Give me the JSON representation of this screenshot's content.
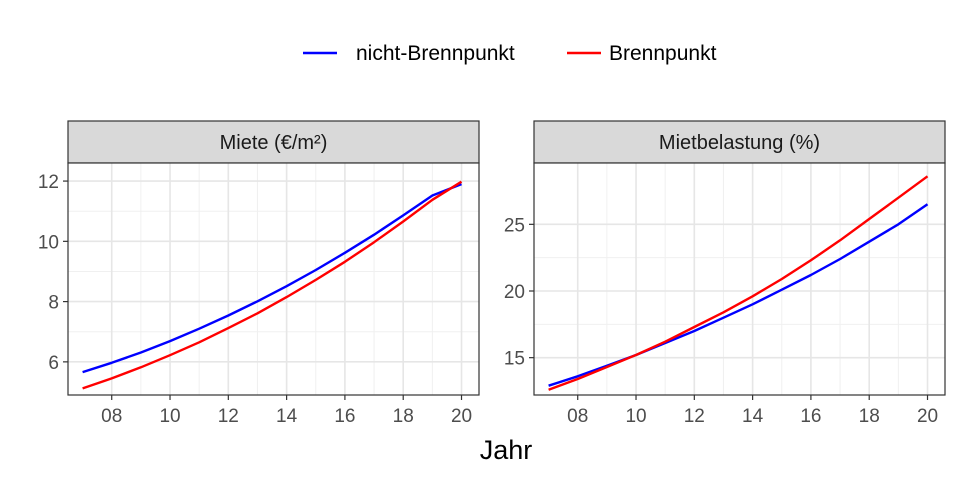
{
  "legend": {
    "items": [
      {
        "label": "nicht-Brennpunkt",
        "color": "#0000FF"
      },
      {
        "label": "Brennpunkt",
        "color": "#FF0000"
      }
    ]
  },
  "xlabel": "Jahr",
  "chart_data": [
    {
      "type": "line",
      "title": "Miete (€/m²)",
      "xlabel": "Jahr",
      "ylabel": "",
      "x": [
        7,
        8,
        9,
        10,
        11,
        12,
        13,
        14,
        15,
        16,
        17,
        18,
        19,
        20
      ],
      "x_ticks": [
        8,
        10,
        12,
        14,
        16,
        18,
        20
      ],
      "x_tick_labels": [
        "08",
        "10",
        "12",
        "14",
        "16",
        "18",
        "20"
      ],
      "xlim": [
        6.5,
        20.6
      ],
      "y_ticks": [
        6,
        8,
        10,
        12
      ],
      "y_tick_labels": [
        "6",
        "8",
        "10",
        "12"
      ],
      "ylim": [
        4.9,
        12.6
      ],
      "grid": true,
      "series": [
        {
          "name": "nicht-Brennpunkt",
          "color": "#0000FF",
          "values": [
            5.66,
            5.97,
            6.31,
            6.69,
            7.1,
            7.54,
            8.01,
            8.51,
            9.05,
            9.62,
            10.22,
            10.86,
            11.52,
            11.9
          ]
        },
        {
          "name": "Brennpunkt",
          "color": "#FF0000",
          "values": [
            5.12,
            5.45,
            5.82,
            6.22,
            6.65,
            7.12,
            7.61,
            8.15,
            8.72,
            9.32,
            9.97,
            10.66,
            11.38,
            11.98
          ]
        }
      ]
    },
    {
      "type": "line",
      "title": "Mietbelastung (%)",
      "xlabel": "Jahr",
      "ylabel": "",
      "x": [
        7,
        8,
        9,
        10,
        11,
        12,
        13,
        14,
        15,
        16,
        17,
        18,
        19,
        20
      ],
      "x_ticks": [
        8,
        10,
        12,
        14,
        16,
        18,
        20
      ],
      "x_tick_labels": [
        "08",
        "10",
        "12",
        "14",
        "16",
        "18",
        "20"
      ],
      "xlim": [
        6.5,
        20.6
      ],
      "y_ticks": [
        15,
        20,
        25
      ],
      "y_tick_labels": [
        "15",
        "20",
        "25"
      ],
      "ylim": [
        12.2,
        29.6
      ],
      "grid": true,
      "series": [
        {
          "name": "nicht-Brennpunkt",
          "color": "#0000FF",
          "values": [
            12.9,
            13.6,
            14.4,
            15.2,
            16.1,
            17.0,
            18.0,
            19.0,
            20.1,
            21.2,
            22.4,
            23.7,
            25.0,
            26.5
          ]
        },
        {
          "name": "Brennpunkt",
          "color": "#FF0000",
          "values": [
            12.6,
            13.4,
            14.3,
            15.2,
            16.2,
            17.3,
            18.4,
            19.6,
            20.9,
            22.3,
            23.8,
            25.4,
            27.0,
            28.6
          ]
        }
      ]
    }
  ]
}
